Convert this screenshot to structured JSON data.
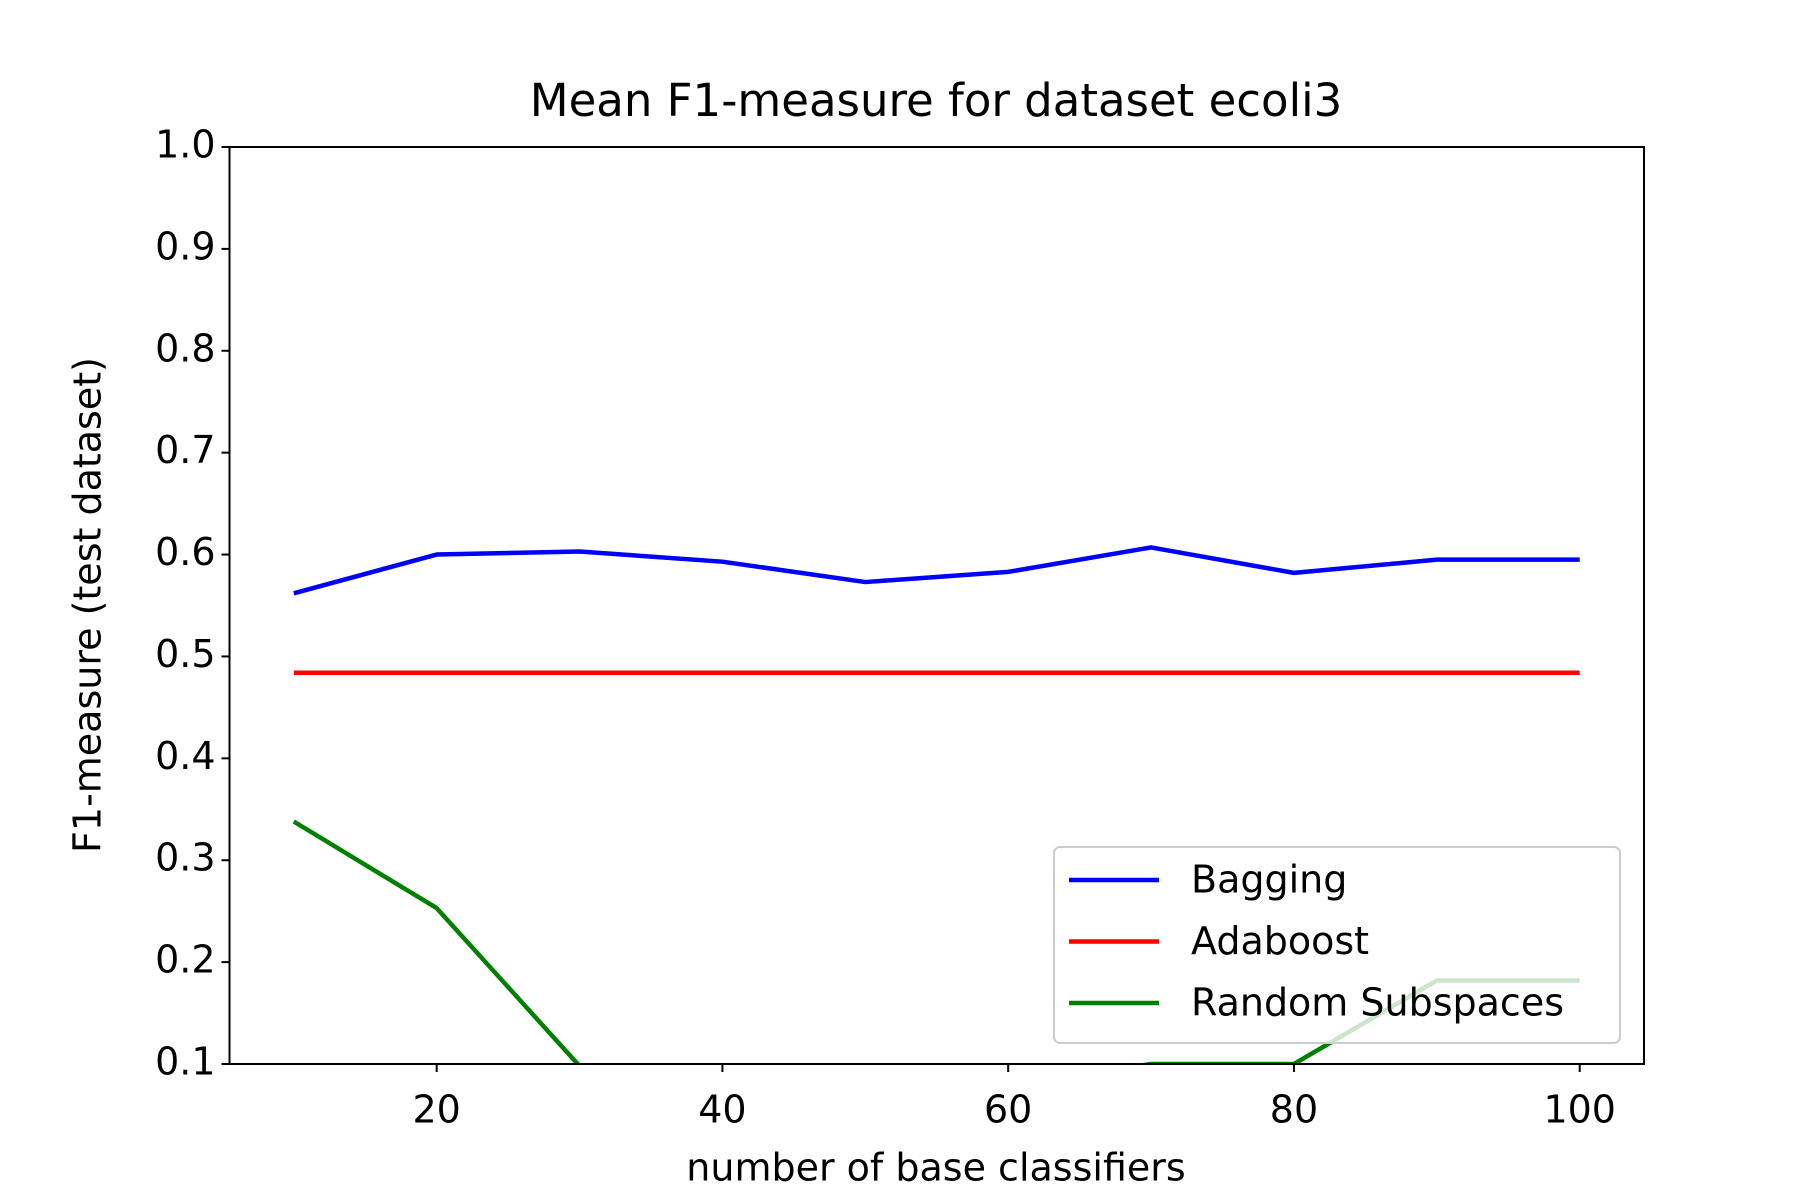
{
  "chart_data": {
    "type": "line",
    "title": "Mean F1-measure for dataset ecoli3",
    "x_label": "number of base classifiers",
    "y_label": "F1-measure (test dataset)",
    "x": [
      10,
      20,
      30,
      40,
      50,
      60,
      70,
      80,
      90,
      100
    ],
    "series": [
      {
        "name": "Bagging",
        "color": "#0000ff",
        "values": [
          0.562,
          0.6,
          0.603,
          0.593,
          0.573,
          0.583,
          0.607,
          0.582,
          0.595,
          0.595
        ]
      },
      {
        "name": "Adaboost",
        "color": "#ff0000",
        "values": [
          0.484,
          0.484,
          0.484,
          0.484,
          0.484,
          0.484,
          0.484,
          0.484,
          0.484,
          0.484
        ]
      },
      {
        "name": "Random Subspaces",
        "color": "#008000",
        "values": [
          0.338,
          0.253,
          0.098,
          0.08,
          0.08,
          0.08,
          0.1,
          0.1,
          0.182,
          0.182
        ]
      }
    ],
    "xlim": [
      5.5,
      104.5
    ],
    "ylim": [
      0.1,
      1.0
    ],
    "xticks": [
      20,
      40,
      60,
      80,
      100
    ],
    "yticks": [
      0.1,
      0.2,
      0.3,
      0.4,
      0.5,
      0.6,
      0.7,
      0.8,
      0.9,
      {
        "value": 1.0,
        "label": "1.0"
      }
    ],
    "grid": false,
    "legend": "lower right"
  }
}
